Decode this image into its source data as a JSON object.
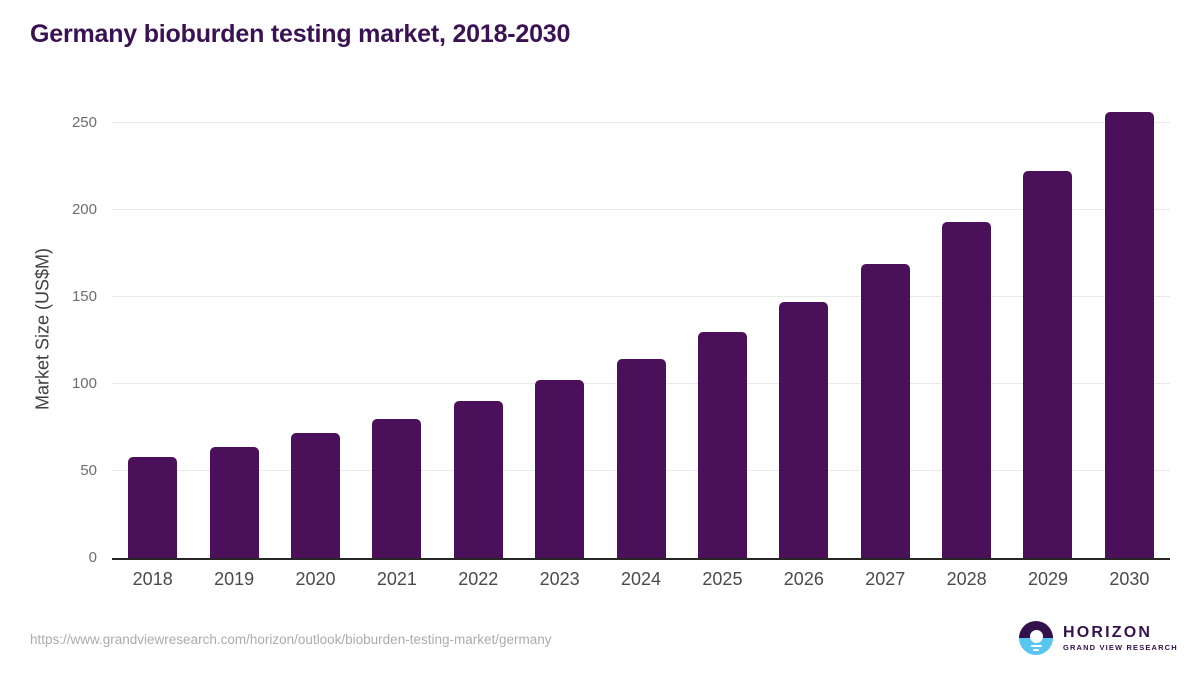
{
  "chart_data": {
    "type": "bar",
    "title": "Germany bioburden testing market, 2018-2030",
    "categories": [
      "2018",
      "2019",
      "2020",
      "2021",
      "2022",
      "2023",
      "2024",
      "2025",
      "2026",
      "2027",
      "2028",
      "2029",
      "2030"
    ],
    "values": [
      58,
      64,
      72,
      80,
      90,
      102,
      114,
      130,
      147,
      169,
      193,
      222,
      256
    ],
    "xlabel": "",
    "ylabel": "Market Size (US$M)",
    "yticks": [
      0,
      50,
      100,
      150,
      200,
      250
    ],
    "ylim": [
      0,
      263
    ],
    "grid": true,
    "legend": false,
    "bar_corner_radius": 5
  },
  "footer": {
    "source_url": "https://www.grandviewresearch.com/horizon/outlook/bioburden-testing-market/germany",
    "logo": {
      "brand": "HORIZON",
      "subtitle": "GRAND VIEW RESEARCH"
    }
  },
  "colors": {
    "title_color": "#3A1253",
    "bar_color": "#4A1059",
    "axis_line": "#262626",
    "grid_color": "#E9E9E9",
    "ytick_color": "#6E6E6E",
    "xtick_color": "#4A4A4A",
    "ylabel_color": "#3F3F3F",
    "url_color": "#ACACAC",
    "logo_purple": "#33124C",
    "logo_blue": "#59C6F2"
  }
}
